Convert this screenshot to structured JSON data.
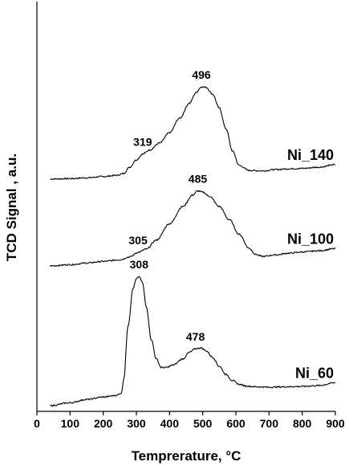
{
  "chart_data": {
    "type": "line",
    "title": "",
    "xlabel": "Tempreraturе, °C",
    "ylabel": "TCD Signal , a.u.",
    "xlim": [
      0,
      900
    ],
    "ylim": [
      0,
      1
    ],
    "xticks": [
      0,
      100,
      200,
      300,
      400,
      500,
      600,
      700,
      800,
      900
    ],
    "x_tick_labels": [
      "0",
      "100",
      "200",
      "300",
      "400",
      "500",
      "600",
      "700",
      "800",
      "900"
    ],
    "y_ticks_shown": false,
    "grid": false,
    "legend": "none",
    "series_labels_placement": "right of each curve",
    "line_color": "#000000",
    "series": [
      {
        "name": "Ni_140",
        "x": [
          40,
          100,
          150,
          200,
          240,
          260,
          280,
          300,
          319,
          340,
          370,
          400,
          430,
          460,
          480,
          496,
          510,
          530,
          550,
          570,
          590,
          610,
          640,
          680,
          720,
          760,
          800,
          850,
          900
        ],
        "y": [
          0.567,
          0.568,
          0.57,
          0.573,
          0.576,
          0.58,
          0.596,
          0.614,
          0.628,
          0.638,
          0.655,
          0.68,
          0.715,
          0.752,
          0.778,
          0.792,
          0.791,
          0.774,
          0.74,
          0.69,
          0.635,
          0.6,
          0.588,
          0.587,
          0.59,
          0.592,
          0.593,
          0.596,
          0.602
        ],
        "peaks": [
          {
            "x": 319,
            "label": "319"
          },
          {
            "x": 496,
            "label": "496"
          }
        ]
      },
      {
        "name": "Ni_100",
        "x": [
          40,
          100,
          150,
          200,
          250,
          280,
          305,
          330,
          360,
          400,
          440,
          470,
          485,
          500,
          520,
          550,
          580,
          610,
          640,
          660,
          680,
          720,
          760,
          800,
          850,
          900
        ],
        "y": [
          0.355,
          0.358,
          0.362,
          0.366,
          0.37,
          0.377,
          0.388,
          0.396,
          0.418,
          0.458,
          0.5,
          0.528,
          0.538,
          0.535,
          0.525,
          0.5,
          0.468,
          0.432,
          0.398,
          0.383,
          0.378,
          0.382,
          0.386,
          0.389,
          0.392,
          0.397
        ],
        "peaks": [
          {
            "x": 305,
            "label": "305"
          },
          {
            "x": 485,
            "label": "485"
          }
        ]
      },
      {
        "name": "Ni_60",
        "x": [
          40,
          100,
          150,
          200,
          240,
          255,
          262,
          275,
          290,
          300,
          308,
          318,
          330,
          345,
          360,
          375,
          390,
          410,
          440,
          460,
          478,
          495,
          510,
          530,
          550,
          570,
          590,
          610,
          630,
          660,
          700,
          750,
          800,
          850,
          900
        ],
        "y": [
          0.014,
          0.021,
          0.029,
          0.035,
          0.039,
          0.045,
          0.08,
          0.21,
          0.3,
          0.323,
          0.329,
          0.315,
          0.255,
          0.175,
          0.128,
          0.107,
          0.107,
          0.113,
          0.128,
          0.144,
          0.153,
          0.155,
          0.148,
          0.132,
          0.11,
          0.09,
          0.075,
          0.066,
          0.062,
          0.06,
          0.059,
          0.06,
          0.061,
          0.063,
          0.07
        ],
        "peaks": [
          {
            "x": 308,
            "label": "308"
          },
          {
            "x": 478,
            "label": "478"
          }
        ]
      }
    ]
  }
}
